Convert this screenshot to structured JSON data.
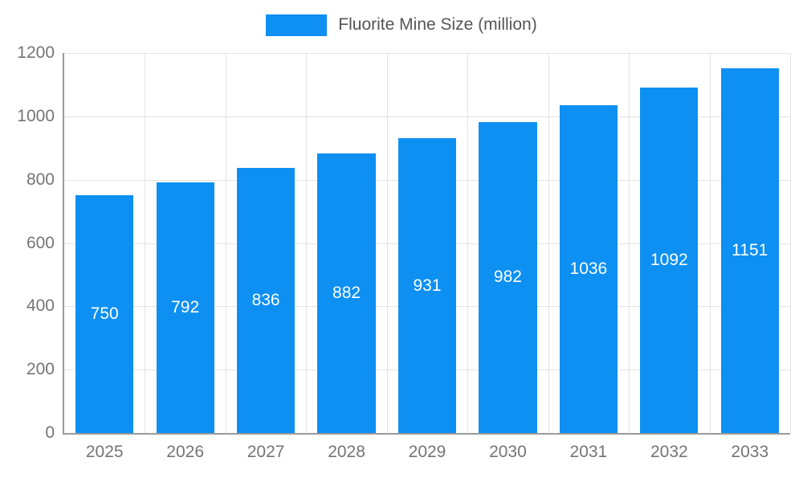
{
  "chart_data": {
    "type": "bar",
    "title": "Fluorite Mine Size (million)",
    "categories": [
      "2025",
      "2026",
      "2027",
      "2028",
      "2029",
      "2030",
      "2031",
      "2032",
      "2033"
    ],
    "values": [
      750,
      792,
      836,
      882,
      931,
      982,
      1036,
      1092,
      1151
    ],
    "xlabel": "",
    "ylabel": "",
    "ylim": [
      0,
      1200
    ],
    "yticks": [
      0,
      200,
      400,
      600,
      800,
      1000,
      1200
    ],
    "legend_position": "top",
    "grid": true,
    "bar_color": "#0d90f2",
    "value_label_color": "#ffffff",
    "axis_text_color": "#757575",
    "grid_color": "#e3e3e3",
    "axis_line_color": "#9a9a9a",
    "background": "#ffffff"
  }
}
